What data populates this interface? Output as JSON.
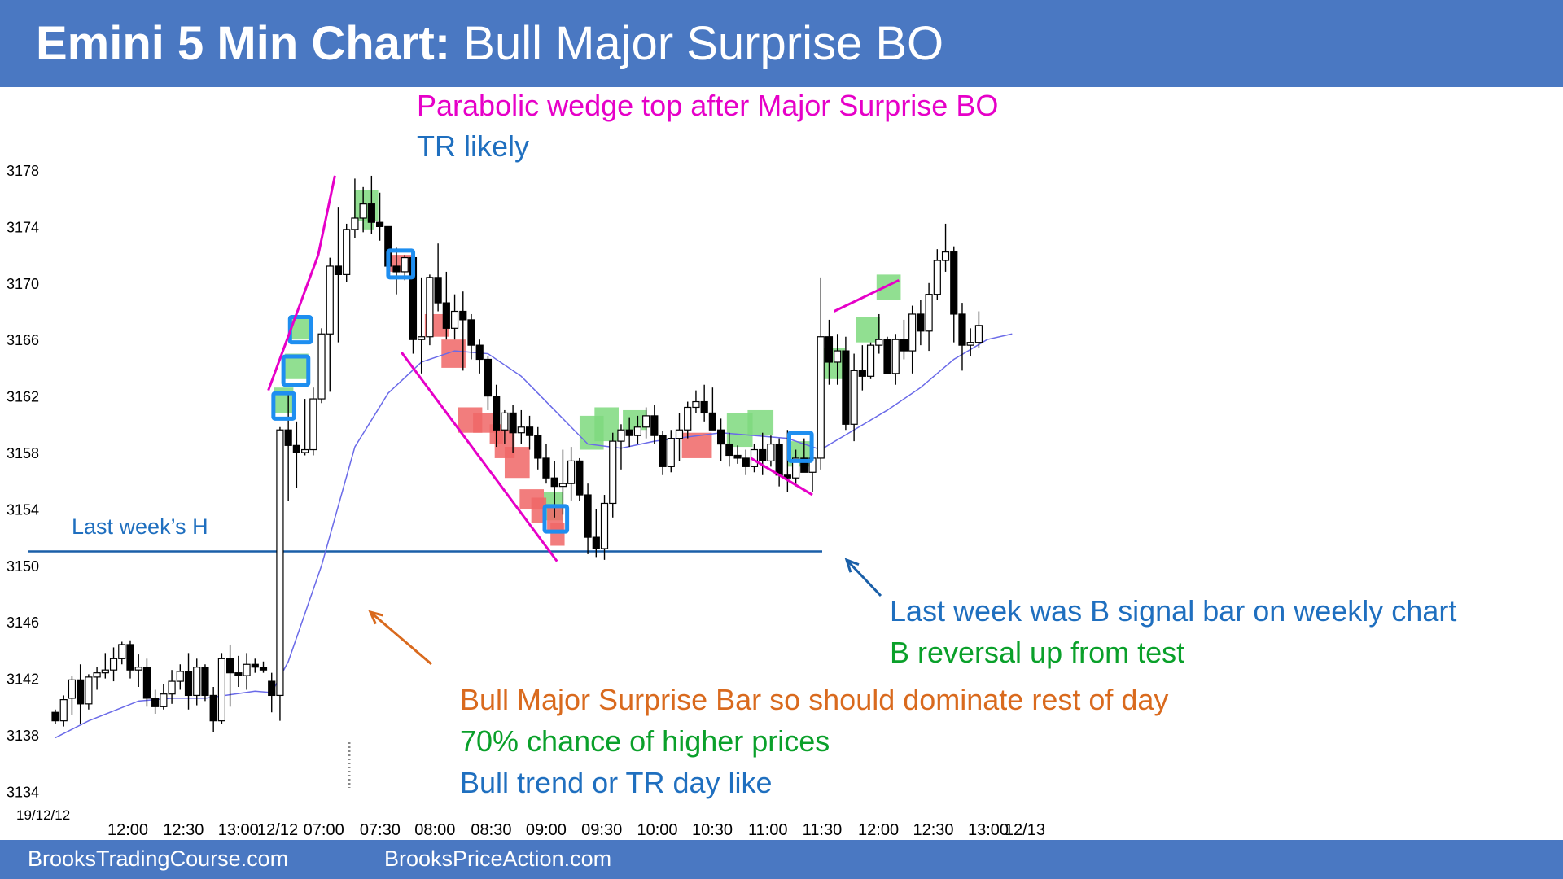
{
  "title": {
    "bold": "Emini 5 Min Chart:",
    "rest": " Bull Major Surprise BO"
  },
  "footer": {
    "left": "BrooksTradingCourse.com",
    "right": "BrooksPriceAction.com"
  },
  "date_label": "19/12/12",
  "last_week_label": "Last week’s H",
  "annotations": {
    "wedge_top": "Parabolic wedge top after Major Surprise BO",
    "tr_likely": "TR likely",
    "last_week_signal": "Last week was B signal bar on weekly chart",
    "b_reversal": "B reversal up from test",
    "surprise_bar": "Bull Major Surprise Bar so should dominate rest of day",
    "chance": "70% chance of higher prices",
    "trend_day": "Bull trend or TR day like"
  },
  "colors": {
    "bar": "#4a78c2",
    "pink": "#e600c8",
    "blue_text": "#1f6fbf",
    "green_text": "#0aa02a",
    "orange": "#d96a1e",
    "ema": "#6a6ae8",
    "green_box": "#7ed97e",
    "red_box": "#f06666",
    "blue_outline": "#1e8ef0"
  },
  "chart_data": {
    "type": "candlestick",
    "title": "Emini 5 Min Chart: Bull Major Surprise BO",
    "y_ticks": [
      3178,
      3174,
      3170,
      3166,
      3162,
      3158,
      3154,
      3150,
      3146,
      3142,
      3138,
      3134
    ],
    "ylim": [
      3134,
      3181
    ],
    "x_ticks": [
      "12:00",
      "12:30",
      "13:00",
      "12/12",
      "07:00",
      "07:30",
      "08:00",
      "08:30",
      "09:00",
      "09:30",
      "10:00",
      "10:30",
      "11:00",
      "11:30",
      "12:00",
      "12:30",
      "13:00",
      "12/13"
    ],
    "last_week_high": 3151,
    "bars": [
      [
        3139.6,
        3139.8,
        3138.8,
        3139.0
      ],
      [
        3139.0,
        3140.8,
        3138.6,
        3140.5
      ],
      [
        3140.6,
        3142.2,
        3139.4,
        3141.9
      ],
      [
        3141.9,
        3143.0,
        3138.8,
        3140.2
      ],
      [
        3140.2,
        3142.3,
        3139.8,
        3142.1
      ],
      [
        3142.1,
        3142.8,
        3141.2,
        3142.4
      ],
      [
        3142.4,
        3143.8,
        3142.0,
        3142.6
      ],
      [
        3142.6,
        3144.2,
        3141.8,
        3143.4
      ],
      [
        3143.4,
        3144.6,
        3143.0,
        3144.4
      ],
      [
        3144.4,
        3144.7,
        3142.0,
        3142.6
      ],
      [
        3142.6,
        3143.7,
        3141.4,
        3142.8
      ],
      [
        3142.8,
        3143.4,
        3140.0,
        3140.6
      ],
      [
        3140.6,
        3141.2,
        3139.5,
        3140.0
      ],
      [
        3140.0,
        3141.6,
        3139.8,
        3140.9
      ],
      [
        3140.9,
        3142.6,
        3140.2,
        3141.8
      ],
      [
        3141.8,
        3143.0,
        3141.2,
        3142.5
      ],
      [
        3142.5,
        3143.8,
        3139.8,
        3140.8
      ],
      [
        3140.8,
        3143.4,
        3140.1,
        3142.8
      ],
      [
        3142.8,
        3143.0,
        3140.4,
        3140.8
      ],
      [
        3140.8,
        3141.4,
        3138.2,
        3139.0
      ],
      [
        3139.0,
        3143.8,
        3138.8,
        3143.4
      ],
      [
        3143.4,
        3144.4,
        3140.0,
        3142.4
      ],
      [
        3142.4,
        3143.6,
        3141.4,
        3142.2
      ],
      [
        3142.2,
        3143.8,
        3141.2,
        3143.0
      ],
      [
        3143.0,
        3143.4,
        3142.4,
        3142.8
      ],
      [
        3142.8,
        3143.2,
        3142.4,
        3142.6
      ],
      [
        3141.8,
        3142.4,
        3139.6,
        3140.8
      ],
      [
        3140.8,
        3159.8,
        3139.0,
        3159.6
      ],
      [
        3159.6,
        3162.3,
        3154.6,
        3158.5
      ],
      [
        3158.5,
        3160.2,
        3155.5,
        3158.0
      ],
      [
        3158.0,
        3161.8,
        3157.8,
        3158.2
      ],
      [
        3158.2,
        3162.6,
        3157.8,
        3161.8
      ],
      [
        3161.8,
        3166.8,
        3161.5,
        3166.4
      ],
      [
        3166.4,
        3171.8,
        3162.3,
        3171.2
      ],
      [
        3171.2,
        3175.4,
        3165.8,
        3170.6
      ],
      [
        3170.6,
        3174.2,
        3170.1,
        3173.8
      ],
      [
        3173.8,
        3177.4,
        3173.2,
        3174.6
      ],
      [
        3174.6,
        3176.8,
        3173.6,
        3175.6
      ],
      [
        3175.6,
        3177.6,
        3173.5,
        3174.3
      ],
      [
        3174.3,
        3176.4,
        3173.0,
        3174.0
      ],
      [
        3174.0,
        3173.4,
        3170.8,
        3171.2
      ],
      [
        3171.2,
        3172.5,
        3169.2,
        3170.8
      ],
      [
        3170.8,
        3172.0,
        3170.2,
        3171.8
      ],
      [
        3171.8,
        3172.0,
        3165.0,
        3166.0
      ],
      [
        3166.0,
        3170.4,
        3163.6,
        3166.2
      ],
      [
        3166.2,
        3170.6,
        3165.6,
        3170.4
      ],
      [
        3170.4,
        3172.8,
        3168.0,
        3168.6
      ],
      [
        3168.6,
        3170.8,
        3166.0,
        3166.8
      ],
      [
        3166.8,
        3169.2,
        3166.0,
        3168.0
      ],
      [
        3168.0,
        3169.4,
        3163.8,
        3167.4
      ],
      [
        3167.4,
        3167.8,
        3164.6,
        3165.6
      ],
      [
        3165.6,
        3166.0,
        3163.6,
        3164.6
      ],
      [
        3164.6,
        3164.8,
        3161.0,
        3162.0
      ],
      [
        3162.0,
        3162.8,
        3158.4,
        3159.6
      ],
      [
        3159.6,
        3161.0,
        3158.6,
        3160.8
      ],
      [
        3160.8,
        3161.4,
        3158.0,
        3159.4
      ],
      [
        3159.4,
        3161.0,
        3158.6,
        3159.8
      ],
      [
        3159.8,
        3160.6,
        3158.2,
        3159.2
      ],
      [
        3159.2,
        3159.8,
        3156.8,
        3157.6
      ],
      [
        3157.6,
        3158.6,
        3155.8,
        3156.2
      ],
      [
        3156.2,
        3157.4,
        3153.4,
        3155.6
      ],
      [
        3155.6,
        3158.2,
        3153.6,
        3155.8
      ],
      [
        3155.8,
        3158.4,
        3154.6,
        3157.4
      ],
      [
        3157.4,
        3157.6,
        3154.6,
        3155.0
      ],
      [
        3155.0,
        3155.8,
        3150.8,
        3152.0
      ],
      [
        3152.0,
        3154.0,
        3150.6,
        3151.2
      ],
      [
        3151.2,
        3155.0,
        3150.4,
        3154.4
      ],
      [
        3154.4,
        3159.4,
        3153.4,
        3158.8
      ],
      [
        3158.8,
        3160.0,
        3156.8,
        3159.6
      ],
      [
        3159.6,
        3160.5,
        3158.4,
        3159.2
      ],
      [
        3159.2,
        3160.6,
        3158.6,
        3159.8
      ],
      [
        3159.8,
        3161.2,
        3159.0,
        3160.6
      ],
      [
        3160.6,
        3161.4,
        3158.6,
        3159.2
      ],
      [
        3159.2,
        3159.5,
        3156.4,
        3157.0
      ],
      [
        3157.0,
        3159.6,
        3156.6,
        3159.0
      ],
      [
        3159.0,
        3160.8,
        3157.4,
        3159.6
      ],
      [
        3159.6,
        3161.6,
        3159.0,
        3161.2
      ],
      [
        3161.2,
        3162.4,
        3160.8,
        3161.6
      ],
      [
        3161.6,
        3162.8,
        3160.2,
        3160.8
      ],
      [
        3160.8,
        3162.6,
        3159.6,
        3159.6
      ],
      [
        3159.6,
        3160.4,
        3157.4,
        3158.6
      ],
      [
        3158.6,
        3159.4,
        3157.0,
        3157.8
      ],
      [
        3157.8,
        3158.5,
        3157.2,
        3157.6
      ],
      [
        3157.6,
        3158.2,
        3156.4,
        3157.0
      ],
      [
        3157.0,
        3158.6,
        3156.6,
        3158.2
      ],
      [
        3158.2,
        3159.4,
        3156.4,
        3157.4
      ],
      [
        3157.4,
        3159.2,
        3157.0,
        3158.6
      ],
      [
        3158.6,
        3159.0,
        3155.6,
        3156.4
      ],
      [
        3156.4,
        3159.6,
        3155.2,
        3156.2
      ],
      [
        3156.2,
        3158.2,
        3155.6,
        3157.6
      ],
      [
        3157.6,
        3159.0,
        3156.8,
        3156.6
      ],
      [
        3156.6,
        3158.0,
        3155.2,
        3157.6
      ],
      [
        3157.6,
        3170.4,
        3156.8,
        3166.2
      ],
      [
        3166.2,
        3167.4,
        3162.8,
        3164.4
      ],
      [
        3164.4,
        3166.4,
        3162.8,
        3165.2
      ],
      [
        3165.2,
        3166.2,
        3159.6,
        3160.0
      ],
      [
        3160.0,
        3165.0,
        3158.8,
        3163.8
      ],
      [
        3163.8,
        3165.6,
        3162.4,
        3163.4
      ],
      [
        3163.4,
        3165.8,
        3163.2,
        3165.6
      ],
      [
        3165.6,
        3167.8,
        3165.0,
        3166.0
      ],
      [
        3166.0,
        3166.2,
        3163.6,
        3163.6
      ],
      [
        3163.6,
        3166.4,
        3162.8,
        3166.0
      ],
      [
        3166.0,
        3167.4,
        3164.6,
        3165.2
      ],
      [
        3165.2,
        3168.4,
        3163.6,
        3167.8
      ],
      [
        3167.8,
        3168.8,
        3165.6,
        3166.6
      ],
      [
        3166.6,
        3170.0,
        3165.2,
        3169.2
      ],
      [
        3169.2,
        3172.4,
        3168.8,
        3171.6
      ],
      [
        3171.6,
        3174.2,
        3170.8,
        3172.2
      ],
      [
        3172.2,
        3172.6,
        3165.8,
        3167.8
      ],
      [
        3167.8,
        3168.6,
        3163.8,
        3165.6
      ],
      [
        3165.6,
        3166.8,
        3164.8,
        3165.8
      ],
      [
        3165.8,
        3168.0,
        3165.4,
        3167.0
      ]
    ],
    "ema": [
      [
        0,
        3137.8
      ],
      [
        4,
        3139.0
      ],
      [
        10,
        3140.4
      ],
      [
        14,
        3140.6
      ],
      [
        18,
        3140.6
      ],
      [
        24,
        3141.1
      ],
      [
        26,
        3141.0
      ],
      [
        28,
        3143.2
      ],
      [
        32,
        3150.0
      ],
      [
        36,
        3158.4
      ],
      [
        40,
        3162.2
      ],
      [
        44,
        3164.4
      ],
      [
        48,
        3165.2
      ],
      [
        52,
        3165.0
      ],
      [
        56,
        3163.4
      ],
      [
        60,
        3161.0
      ],
      [
        64,
        3158.6
      ],
      [
        68,
        3158.3
      ],
      [
        72,
        3158.8
      ],
      [
        80,
        3159.4
      ],
      [
        88,
        3159.0
      ],
      [
        92,
        3158.2
      ],
      [
        96,
        3159.6
      ],
      [
        100,
        3161.0
      ],
      [
        104,
        3162.6
      ],
      [
        108,
        3164.6
      ],
      [
        112,
        3166.0
      ],
      [
        115,
        3166.4
      ]
    ],
    "green_boxes": [
      [
        26.7,
        29,
        3162.6,
        3160.8
      ],
      [
        28,
        30.8,
        3165.0,
        3163.2
      ],
      [
        28.6,
        30.9,
        3167.6,
        3166.0
      ],
      [
        36.3,
        39.2,
        3176.6,
        3174.4
      ],
      [
        37.3,
        38.7,
        3174.8,
        3173.8
      ],
      [
        59.1,
        61.4,
        3155.2,
        3153.2
      ],
      [
        63.4,
        66.3,
        3160.6,
        3158.2
      ],
      [
        65.2,
        68.1,
        3161.2,
        3158.8
      ],
      [
        68.6,
        71.5,
        3161.0,
        3159.6
      ],
      [
        81.1,
        84.2,
        3160.8,
        3158.4
      ],
      [
        83.6,
        86.7,
        3161.0,
        3159.2
      ],
      [
        88.4,
        91.3,
        3158.8,
        3157.0
      ],
      [
        92.3,
        95.3,
        3165.4,
        3163.2
      ],
      [
        96.6,
        99.5,
        3167.6,
        3165.8
      ],
      [
        99.1,
        102.0,
        3170.6,
        3168.8
      ]
    ],
    "red_boxes": [
      [
        40.5,
        43.4,
        3172.0,
        3170.8
      ],
      [
        44.8,
        47.7,
        3167.8,
        3166.2
      ],
      [
        46.8,
        49.7,
        3166.0,
        3164.0
      ],
      [
        48.8,
        51.7,
        3161.2,
        3159.4
      ],
      [
        50.6,
        53.4,
        3160.8,
        3159.4
      ],
      [
        52.6,
        54.2,
        3160.0,
        3158.6
      ],
      [
        53.2,
        55.6,
        3159.6,
        3157.6
      ],
      [
        54.4,
        57.4,
        3158.4,
        3156.2
      ],
      [
        56.2,
        59.1,
        3155.4,
        3154.0
      ],
      [
        57.6,
        59.4,
        3154.8,
        3153.0
      ],
      [
        59.5,
        61.4,
        3154.2,
        3152.4
      ],
      [
        59.9,
        61.6,
        3153.0,
        3151.4
      ],
      [
        75.7,
        79.3,
        3159.4,
        3157.6
      ]
    ],
    "blue_boxes": [
      [
        26.6,
        29.1,
        3162.2,
        3160.4
      ],
      [
        27.8,
        30.8,
        3164.8,
        3162.8
      ],
      [
        28.6,
        31.1,
        3167.6,
        3165.8
      ],
      [
        40.4,
        43.4,
        3172.3,
        3170.4
      ],
      [
        59.2,
        61.9,
        3154.2,
        3152.4
      ],
      [
        88.6,
        91.3,
        3159.4,
        3157.4
      ]
    ],
    "pink_lines": [
      [
        25.6,
        3162.4,
        31.6,
        3172.0,
        33.6,
        3177.6
      ],
      [
        41.6,
        3165.1,
        60.3,
        3150.3
      ],
      [
        83.6,
        3157.6,
        91.0,
        3155.0
      ],
      [
        93.6,
        3168.0,
        101.4,
        3170.2
      ]
    ]
  }
}
